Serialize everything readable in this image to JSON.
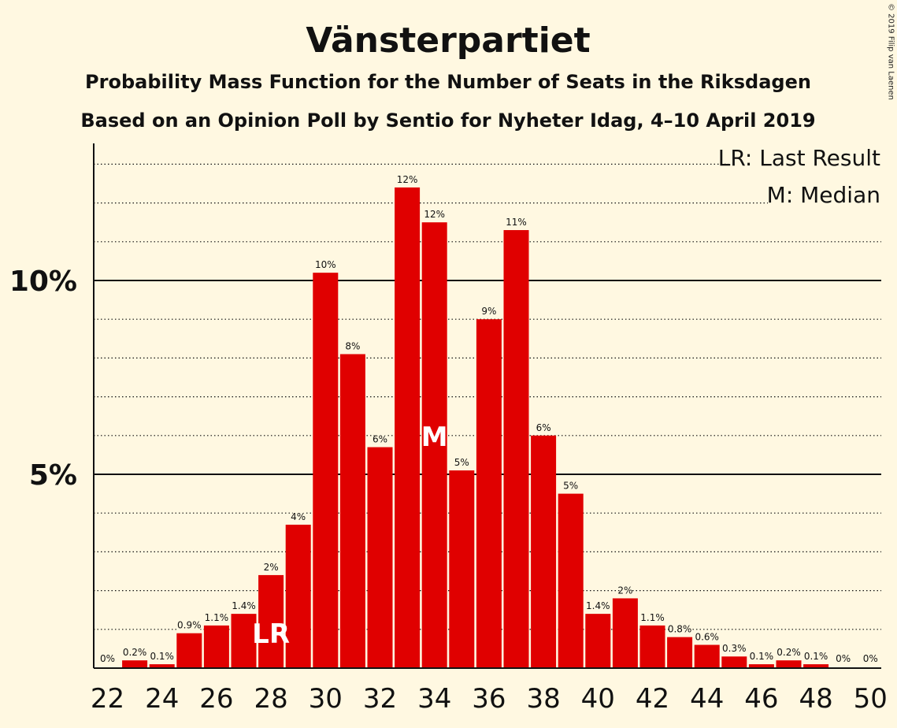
{
  "title": "Vänsterpartiet",
  "subtitle1": "Probability Mass Function for the Number of Seats in the Riksdagen",
  "subtitle2": "Based on an Opinion Poll by Sentio for Nyheter Idag, 4–10 April 2019",
  "copyright": "© 2019 Filip van Laenen",
  "legend": {
    "lr": "LR: Last Result",
    "m": "M: Median"
  },
  "colors": {
    "bar": "#e00000",
    "background": "#fff8e1",
    "axis": "#111111"
  },
  "chart_data": {
    "type": "bar",
    "x": [
      22,
      23,
      24,
      25,
      26,
      27,
      28,
      29,
      30,
      31,
      32,
      33,
      34,
      35,
      36,
      37,
      38,
      39,
      40,
      41,
      42,
      43,
      44,
      45,
      46,
      47,
      48,
      49,
      50
    ],
    "values": [
      0,
      0.2,
      0.1,
      0.9,
      1.1,
      1.4,
      2.4,
      3.7,
      10.2,
      8.1,
      5.7,
      12.4,
      11.5,
      5.1,
      9.0,
      11.3,
      6.0,
      4.5,
      1.4,
      1.8,
      1.1,
      0.8,
      0.6,
      0.3,
      0.1,
      0.2,
      0.1,
      0,
      0
    ],
    "data_labels": [
      "0%",
      "0.2%",
      "0.1%",
      "0.9%",
      "1.1%",
      "1.4%",
      "2%",
      "4%",
      "10%",
      "8%",
      "6%",
      "12%",
      "12%",
      "5%",
      "9%",
      "11%",
      "6%",
      "5%",
      "1.4%",
      "2%",
      "1.1%",
      "0.8%",
      "0.6%",
      "0.3%",
      "0.1%",
      "0.2%",
      "0.1%",
      "0%",
      "0%"
    ],
    "ylim": [
      0,
      13.5
    ],
    "yticks": [
      {
        "value": 5,
        "label": "5%"
      },
      {
        "value": 10,
        "label": "10%"
      }
    ],
    "xticks": [
      22,
      24,
      26,
      28,
      30,
      32,
      34,
      36,
      38,
      40,
      42,
      44,
      46,
      48,
      50
    ],
    "markers": [
      {
        "x": 28,
        "label": "LR"
      },
      {
        "x": 34,
        "label": "M"
      }
    ]
  }
}
